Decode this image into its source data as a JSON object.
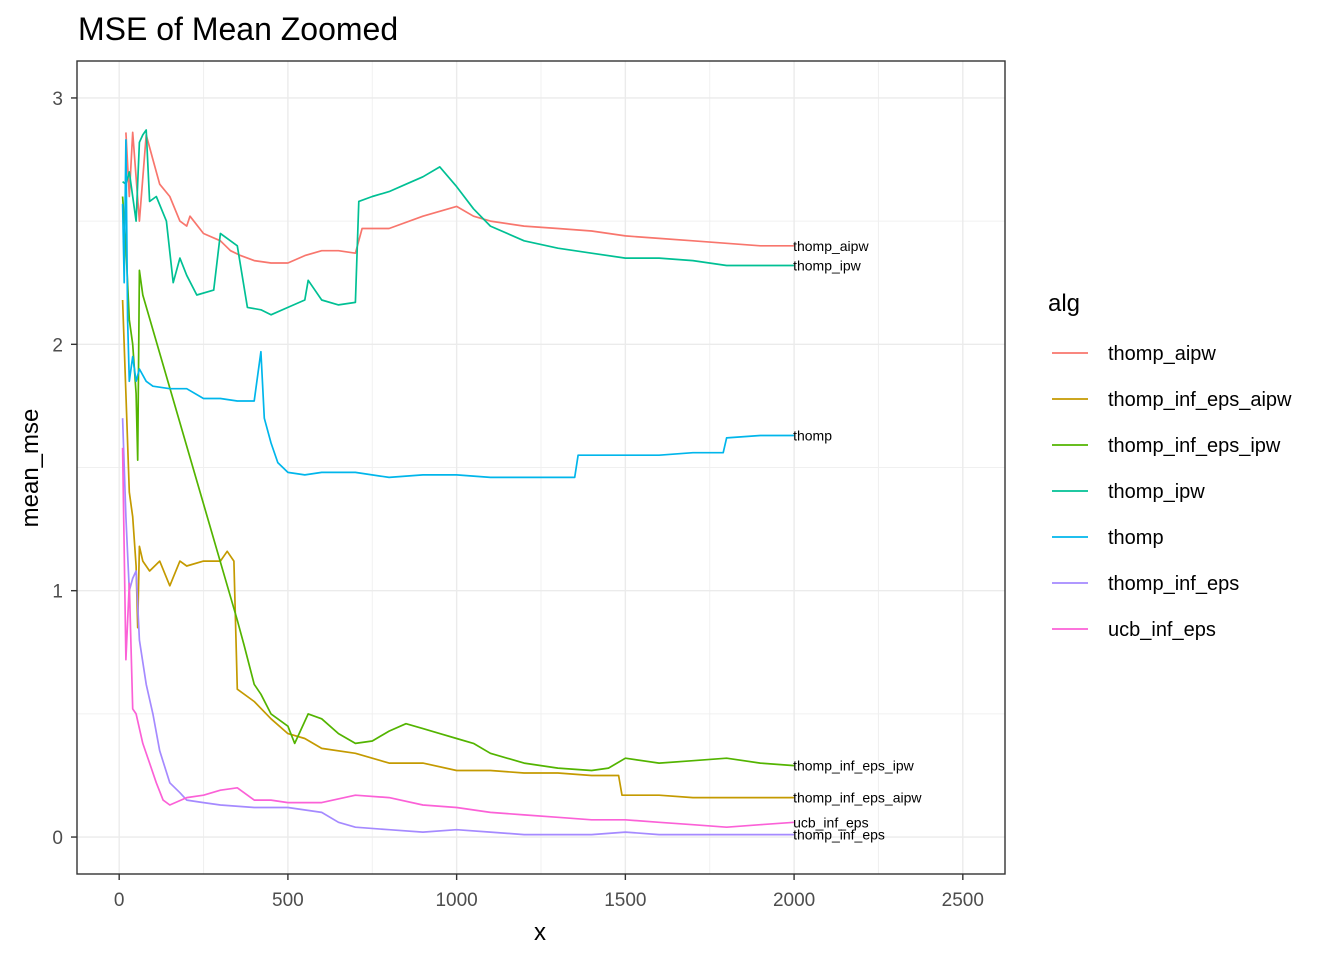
{
  "chart_data": {
    "type": "line",
    "title": "MSE of Mean Zoomed",
    "xlabel": "x",
    "ylabel": "mean_mse",
    "xlim": [
      -125,
      2625
    ],
    "ylim": [
      -0.15,
      3.15
    ],
    "x_ticks": [
      0,
      500,
      1000,
      1500,
      2000,
      2500
    ],
    "x_tick_labels": [
      "0",
      "500",
      "1000",
      "1500",
      "2000",
      "2500"
    ],
    "y_ticks": [
      0,
      1,
      2,
      3
    ],
    "y_tick_labels": [
      "0",
      "1",
      "2",
      "3"
    ],
    "grid": true,
    "legend_title": "alg",
    "legend_position": "right",
    "series": [
      {
        "name": "thomp_aipw",
        "color": "#F8766D",
        "end_label": "thomp_aipw",
        "points": [
          [
            20,
            2.86
          ],
          [
            30,
            2.6
          ],
          [
            40,
            2.86
          ],
          [
            60,
            2.5
          ],
          [
            80,
            2.85
          ],
          [
            100,
            2.75
          ],
          [
            120,
            2.65
          ],
          [
            150,
            2.6
          ],
          [
            180,
            2.5
          ],
          [
            200,
            2.48
          ],
          [
            210,
            2.52
          ],
          [
            250,
            2.45
          ],
          [
            300,
            2.42
          ],
          [
            330,
            2.38
          ],
          [
            360,
            2.36
          ],
          [
            400,
            2.34
          ],
          [
            450,
            2.33
          ],
          [
            500,
            2.33
          ],
          [
            550,
            2.36
          ],
          [
            600,
            2.38
          ],
          [
            650,
            2.38
          ],
          [
            700,
            2.37
          ],
          [
            720,
            2.47
          ],
          [
            800,
            2.47
          ],
          [
            900,
            2.52
          ],
          [
            1000,
            2.56
          ],
          [
            1050,
            2.52
          ],
          [
            1100,
            2.5
          ],
          [
            1200,
            2.48
          ],
          [
            1300,
            2.47
          ],
          [
            1400,
            2.46
          ],
          [
            1500,
            2.44
          ],
          [
            1600,
            2.43
          ],
          [
            1700,
            2.42
          ],
          [
            1800,
            2.41
          ],
          [
            1900,
            2.4
          ],
          [
            2000,
            2.4
          ]
        ]
      },
      {
        "name": "thomp_inf_eps_aipw",
        "color": "#C49A00",
        "end_label": "thomp_inf_eps_aipw",
        "points": [
          [
            10,
            2.18
          ],
          [
            20,
            1.8
          ],
          [
            30,
            1.4
          ],
          [
            40,
            1.3
          ],
          [
            50,
            1.1
          ],
          [
            55,
            0.85
          ],
          [
            60,
            1.18
          ],
          [
            70,
            1.12
          ],
          [
            90,
            1.08
          ],
          [
            120,
            1.12
          ],
          [
            150,
            1.02
          ],
          [
            180,
            1.12
          ],
          [
            200,
            1.1
          ],
          [
            250,
            1.12
          ],
          [
            300,
            1.12
          ],
          [
            320,
            1.16
          ],
          [
            340,
            1.12
          ],
          [
            350,
            0.6
          ],
          [
            400,
            0.55
          ],
          [
            450,
            0.48
          ],
          [
            500,
            0.42
          ],
          [
            550,
            0.4
          ],
          [
            600,
            0.36
          ],
          [
            700,
            0.34
          ],
          [
            800,
            0.3
          ],
          [
            900,
            0.3
          ],
          [
            1000,
            0.27
          ],
          [
            1100,
            0.27
          ],
          [
            1200,
            0.26
          ],
          [
            1300,
            0.26
          ],
          [
            1400,
            0.25
          ],
          [
            1480,
            0.25
          ],
          [
            1490,
            0.17
          ],
          [
            1600,
            0.17
          ],
          [
            1700,
            0.16
          ],
          [
            1800,
            0.16
          ],
          [
            1900,
            0.16
          ],
          [
            2000,
            0.16
          ]
        ]
      },
      {
        "name": "thomp_inf_eps_ipw",
        "color": "#53B400",
        "end_label": "thomp_inf_eps_ipw",
        "points": [
          [
            10,
            2.6
          ],
          [
            20,
            2.4
          ],
          [
            30,
            2.1
          ],
          [
            40,
            2.0
          ],
          [
            50,
            1.8
          ],
          [
            55,
            1.53
          ],
          [
            60,
            2.3
          ],
          [
            70,
            2.2
          ],
          [
            350,
            0.88
          ],
          [
            370,
            0.78
          ],
          [
            400,
            0.62
          ],
          [
            420,
            0.58
          ],
          [
            450,
            0.5
          ],
          [
            500,
            0.45
          ],
          [
            520,
            0.38
          ],
          [
            560,
            0.5
          ],
          [
            600,
            0.48
          ],
          [
            650,
            0.42
          ],
          [
            700,
            0.38
          ],
          [
            750,
            0.39
          ],
          [
            800,
            0.43
          ],
          [
            850,
            0.46
          ],
          [
            900,
            0.44
          ],
          [
            950,
            0.42
          ],
          [
            1000,
            0.4
          ],
          [
            1050,
            0.38
          ],
          [
            1100,
            0.34
          ],
          [
            1200,
            0.3
          ],
          [
            1300,
            0.28
          ],
          [
            1400,
            0.27
          ],
          [
            1450,
            0.28
          ],
          [
            1500,
            0.32
          ],
          [
            1600,
            0.3
          ],
          [
            1700,
            0.31
          ],
          [
            1800,
            0.32
          ],
          [
            1900,
            0.3
          ],
          [
            2000,
            0.29
          ]
        ]
      },
      {
        "name": "thomp_ipw",
        "color": "#00C094",
        "end_label": "thomp_ipw",
        "points": [
          [
            10,
            2.66
          ],
          [
            20,
            2.65
          ],
          [
            30,
            2.7
          ],
          [
            50,
            2.5
          ],
          [
            60,
            2.82
          ],
          [
            70,
            2.85
          ],
          [
            80,
            2.87
          ],
          [
            90,
            2.58
          ],
          [
            110,
            2.6
          ],
          [
            140,
            2.5
          ],
          [
            160,
            2.25
          ],
          [
            180,
            2.35
          ],
          [
            200,
            2.28
          ],
          [
            230,
            2.2
          ],
          [
            280,
            2.22
          ],
          [
            300,
            2.45
          ],
          [
            320,
            2.43
          ],
          [
            350,
            2.4
          ],
          [
            380,
            2.15
          ],
          [
            420,
            2.14
          ],
          [
            450,
            2.12
          ],
          [
            500,
            2.15
          ],
          [
            550,
            2.18
          ],
          [
            560,
            2.26
          ],
          [
            600,
            2.18
          ],
          [
            650,
            2.16
          ],
          [
            700,
            2.17
          ],
          [
            710,
            2.58
          ],
          [
            750,
            2.6
          ],
          [
            800,
            2.62
          ],
          [
            850,
            2.65
          ],
          [
            900,
            2.68
          ],
          [
            950,
            2.72
          ],
          [
            1000,
            2.64
          ],
          [
            1050,
            2.55
          ],
          [
            1100,
            2.48
          ],
          [
            1200,
            2.42
          ],
          [
            1300,
            2.39
          ],
          [
            1400,
            2.37
          ],
          [
            1500,
            2.35
          ],
          [
            1600,
            2.35
          ],
          [
            1700,
            2.34
          ],
          [
            1800,
            2.32
          ],
          [
            1900,
            2.32
          ],
          [
            2000,
            2.32
          ]
        ]
      },
      {
        "name": "thomp",
        "color": "#00B6EB",
        "end_label": "thomp",
        "points": [
          [
            10,
            2.57
          ],
          [
            15,
            2.25
          ],
          [
            20,
            2.83
          ],
          [
            25,
            2.1
          ],
          [
            30,
            1.85
          ],
          [
            40,
            1.95
          ],
          [
            50,
            1.85
          ],
          [
            60,
            1.9
          ],
          [
            80,
            1.85
          ],
          [
            100,
            1.83
          ],
          [
            150,
            1.82
          ],
          [
            200,
            1.82
          ],
          [
            250,
            1.78
          ],
          [
            300,
            1.78
          ],
          [
            350,
            1.77
          ],
          [
            400,
            1.77
          ],
          [
            420,
            1.97
          ],
          [
            430,
            1.7
          ],
          [
            450,
            1.6
          ],
          [
            470,
            1.52
          ],
          [
            500,
            1.48
          ],
          [
            550,
            1.47
          ],
          [
            600,
            1.48
          ],
          [
            700,
            1.48
          ],
          [
            800,
            1.46
          ],
          [
            900,
            1.47
          ],
          [
            1000,
            1.47
          ],
          [
            1100,
            1.46
          ],
          [
            1200,
            1.46
          ],
          [
            1300,
            1.46
          ],
          [
            1350,
            1.46
          ],
          [
            1360,
            1.55
          ],
          [
            1500,
            1.55
          ],
          [
            1600,
            1.55
          ],
          [
            1700,
            1.56
          ],
          [
            1790,
            1.56
          ],
          [
            1800,
            1.62
          ],
          [
            1900,
            1.63
          ],
          [
            2000,
            1.63
          ]
        ]
      },
      {
        "name": "thomp_inf_eps",
        "color": "#A58AFF",
        "end_label": "thomp_inf_eps",
        "points": [
          [
            10,
            1.7
          ],
          [
            20,
            1.3
          ],
          [
            30,
            1.0
          ],
          [
            40,
            1.05
          ],
          [
            50,
            1.08
          ],
          [
            60,
            0.8
          ],
          [
            80,
            0.62
          ],
          [
            100,
            0.5
          ],
          [
            120,
            0.35
          ],
          [
            150,
            0.22
          ],
          [
            180,
            0.18
          ],
          [
            200,
            0.15
          ],
          [
            250,
            0.14
          ],
          [
            300,
            0.13
          ],
          [
            400,
            0.12
          ],
          [
            500,
            0.12
          ],
          [
            600,
            0.1
          ],
          [
            650,
            0.06
          ],
          [
            700,
            0.04
          ],
          [
            800,
            0.03
          ],
          [
            900,
            0.02
          ],
          [
            1000,
            0.03
          ],
          [
            1100,
            0.02
          ],
          [
            1200,
            0.01
          ],
          [
            1300,
            0.01
          ],
          [
            1400,
            0.01
          ],
          [
            1500,
            0.02
          ],
          [
            1600,
            0.01
          ],
          [
            1700,
            0.01
          ],
          [
            1800,
            0.01
          ],
          [
            1900,
            0.01
          ],
          [
            2000,
            0.01
          ]
        ]
      },
      {
        "name": "ucb_inf_eps",
        "color": "#FB61D7",
        "end_label": "ucb_inf_eps",
        "points": [
          [
            10,
            1.58
          ],
          [
            20,
            0.72
          ],
          [
            30,
            1.03
          ],
          [
            40,
            0.52
          ],
          [
            50,
            0.5
          ],
          [
            70,
            0.38
          ],
          [
            90,
            0.3
          ],
          [
            110,
            0.22
          ],
          [
            130,
            0.15
          ],
          [
            150,
            0.13
          ],
          [
            200,
            0.16
          ],
          [
            250,
            0.17
          ],
          [
            300,
            0.19
          ],
          [
            350,
            0.2
          ],
          [
            400,
            0.15
          ],
          [
            450,
            0.15
          ],
          [
            500,
            0.14
          ],
          [
            600,
            0.14
          ],
          [
            700,
            0.17
          ],
          [
            800,
            0.16
          ],
          [
            900,
            0.13
          ],
          [
            1000,
            0.12
          ],
          [
            1100,
            0.1
          ],
          [
            1200,
            0.09
          ],
          [
            1300,
            0.08
          ],
          [
            1400,
            0.07
          ],
          [
            1500,
            0.07
          ],
          [
            1600,
            0.06
          ],
          [
            1700,
            0.05
          ],
          [
            1800,
            0.04
          ],
          [
            1900,
            0.05
          ],
          [
            2000,
            0.06
          ]
        ]
      }
    ]
  }
}
